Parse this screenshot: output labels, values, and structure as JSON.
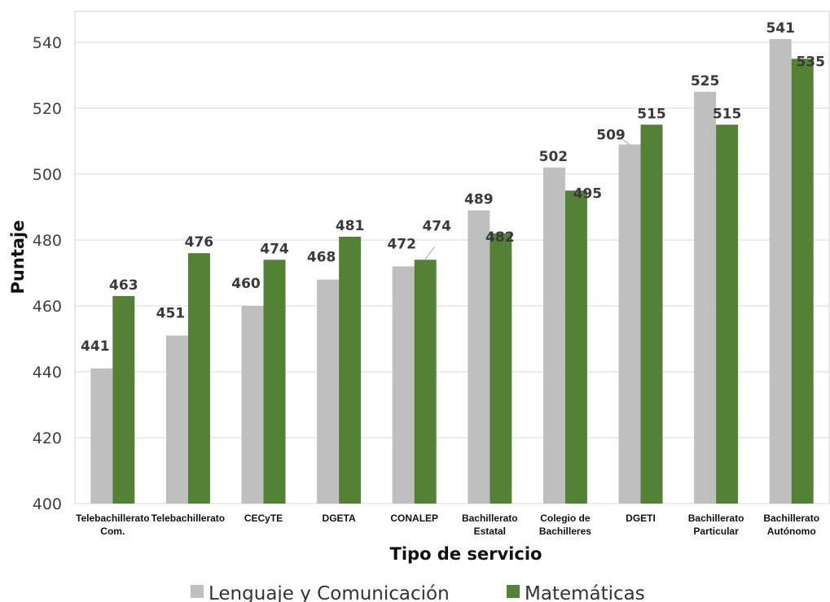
{
  "chart_data": {
    "type": "bar",
    "xlabel": "Tipo de servicio",
    "ylabel": "Puntaje",
    "ylim": [
      400,
      545
    ],
    "yticks": [
      400,
      420,
      440,
      460,
      480,
      500,
      520,
      540
    ],
    "grid": true,
    "legend_position": "bottom",
    "categories": [
      [
        "Telebachillerato",
        "Com."
      ],
      [
        "Telebachillerato"
      ],
      [
        "CECyTE"
      ],
      [
        "DGETA"
      ],
      [
        "CONALEP"
      ],
      [
        "Bachillerato",
        "Estatal"
      ],
      [
        "Colegio de",
        "Bachilleres"
      ],
      [
        "DGETI"
      ],
      [
        "Bachillerato",
        "Particular"
      ],
      [
        "Bachillerato",
        "Autónomo"
      ]
    ],
    "series": [
      {
        "name": "Lenguaje y Comunicación",
        "color": "#bfbfbf",
        "values": [
          441,
          451,
          460,
          468,
          472,
          489,
          502,
          509,
          525,
          541
        ]
      },
      {
        "name": "Matemáticas",
        "color": "#538135",
        "values": [
          463,
          476,
          474,
          481,
          474,
          482,
          495,
          515,
          515,
          535
        ]
      }
    ]
  }
}
